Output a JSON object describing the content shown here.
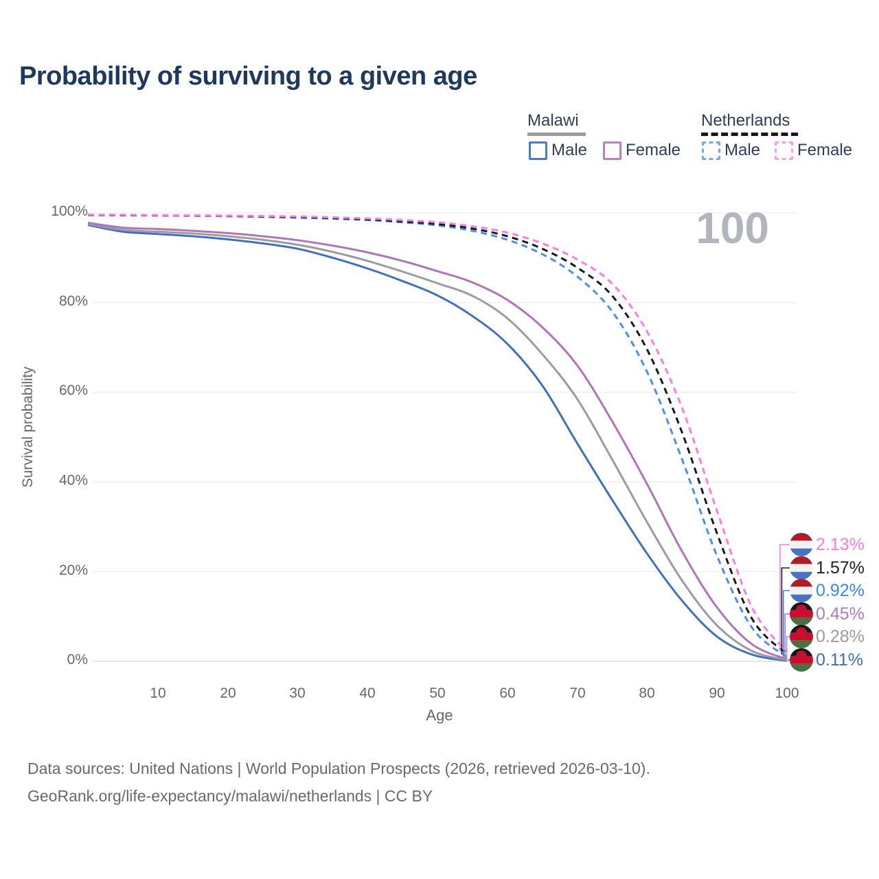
{
  "title": "Probability of surviving to a given age",
  "watermark_age": "100",
  "legend": {
    "groups": [
      {
        "label": "Malawi",
        "line_style": "solid",
        "underline_color": "#9b9ba1",
        "items": [
          {
            "label": "Male",
            "color": "#4a7cc7",
            "line_style": "solid"
          },
          {
            "label": "Female",
            "color": "#bb7fc0",
            "line_style": "solid"
          }
        ]
      },
      {
        "label": "Netherlands",
        "line_style": "dashed",
        "underline_color": "#17191d",
        "items": [
          {
            "label": "Male",
            "color": "#74a6f2",
            "line_style": "dashed"
          },
          {
            "label": "Female",
            "color": "#ff9ae8",
            "line_style": "dashed"
          }
        ]
      }
    ]
  },
  "axes": {
    "y_label": "Survival probability",
    "x_label": "Age",
    "y_ticks": [
      "100%",
      "80%",
      "60%",
      "40%",
      "20%",
      "0%"
    ],
    "x_ticks": [
      "10",
      "20",
      "30",
      "40",
      "50",
      "60",
      "70",
      "80",
      "90",
      "100"
    ]
  },
  "end_labels": [
    {
      "value": "2.13%",
      "color": "#fb7ce0",
      "country": "Netherlands",
      "series": "Netherlands Female"
    },
    {
      "value": "1.57%",
      "color": "#1d1d21",
      "country": "Netherlands",
      "series": "Netherlands (both sexes)"
    },
    {
      "value": "0.92%",
      "color": "#3c85ee",
      "country": "Netherlands",
      "series": "Netherlands Male"
    },
    {
      "value": "0.45%",
      "color": "#b279bb",
      "country": "Malawi",
      "series": "Malawi Female"
    },
    {
      "value": "0.28%",
      "color": "#9b9ba1",
      "country": "Malawi",
      "series": "Malawi (both sexes)"
    },
    {
      "value": "0.11%",
      "color": "#3f6fbd",
      "country": "Malawi",
      "series": "Malawi Male"
    }
  ],
  "footer": {
    "line1": "Data sources: United Nations | World Population Prospects (2026, retrieved 2026-03-10).",
    "line2": "GeoRank.org/life-expectancy/malawi/netherlands | CC BY"
  },
  "chart_data": {
    "type": "line",
    "title": "Probability of surviving to a given age",
    "xlabel": "Age",
    "ylabel": "Survival probability",
    "xlim": [
      0,
      100
    ],
    "ylim": [
      0,
      100
    ],
    "grid": "horizontal-only",
    "legend_position": "top-right",
    "hovered_age": 100,
    "x": [
      0,
      5,
      10,
      15,
      20,
      25,
      30,
      35,
      40,
      45,
      50,
      55,
      60,
      65,
      70,
      75,
      80,
      85,
      90,
      95,
      100
    ],
    "series": [
      {
        "name": "Malawi Male",
        "country": "Malawi",
        "sex": "Male",
        "style": "solid",
        "color": "#3f6fbd",
        "end_label": "0.11%",
        "values": [
          97.3,
          95.8,
          95.3,
          94.8,
          94.1,
          93.2,
          92.0,
          90.0,
          87.6,
          84.8,
          81.6,
          77.0,
          70.8,
          61.5,
          48.6,
          36.0,
          24.0,
          13.5,
          5.5,
          1.5,
          0.11
        ]
      },
      {
        "name": "Malawi (both sexes)",
        "country": "Malawi",
        "sex": "Both",
        "style": "solid",
        "color": "#9b9ba1",
        "end_label": "0.28%",
        "values": [
          97.5,
          96.2,
          95.8,
          95.4,
          94.8,
          94.0,
          92.9,
          91.3,
          89.3,
          86.9,
          84.3,
          81.5,
          76.5,
          68.5,
          58.5,
          45.0,
          31.0,
          18.0,
          8.0,
          2.3,
          0.28
        ]
      },
      {
        "name": "Malawi Female",
        "country": "Malawi",
        "sex": "Female",
        "style": "solid",
        "color": "#af74ba",
        "end_label": "0.45%",
        "values": [
          97.8,
          96.7,
          96.4,
          96.0,
          95.5,
          94.8,
          93.9,
          92.7,
          91.2,
          89.3,
          87.0,
          84.5,
          80.6,
          74.5,
          66.0,
          53.5,
          39.5,
          24.5,
          12.0,
          3.8,
          0.45
        ]
      },
      {
        "name": "Netherlands Male",
        "country": "Netherlands",
        "sex": "Male",
        "style": "dashed",
        "color": "#4c8df0",
        "end_label": "0.92%",
        "values": [
          99.5,
          99.45,
          99.4,
          99.35,
          99.25,
          99.1,
          98.95,
          98.7,
          98.4,
          97.9,
          97.2,
          96.0,
          94.0,
          90.8,
          85.8,
          78.0,
          64.5,
          45.0,
          23.5,
          7.5,
          0.92
        ]
      },
      {
        "name": "Netherlands (both sexes)",
        "country": "Netherlands",
        "sex": "Both",
        "style": "dashed",
        "color": "#17181c",
        "end_label": "1.57%",
        "values": [
          99.55,
          99.5,
          99.45,
          99.4,
          99.35,
          99.2,
          99.05,
          98.85,
          98.55,
          98.1,
          97.5,
          96.5,
          94.8,
          92.0,
          87.8,
          81.5,
          69.5,
          51.0,
          28.5,
          9.5,
          1.57
        ]
      },
      {
        "name": "Netherlands Female",
        "country": "Netherlands",
        "sex": "Female",
        "style": "dashed",
        "color": "#fb7ce0",
        "end_label": "2.13%",
        "values": [
          99.6,
          99.55,
          99.5,
          99.45,
          99.4,
          99.3,
          99.2,
          99.0,
          98.75,
          98.4,
          97.9,
          97.0,
          95.6,
          93.2,
          89.6,
          84.2,
          73.5,
          56.5,
          33.5,
          12.0,
          2.13
        ]
      }
    ]
  }
}
